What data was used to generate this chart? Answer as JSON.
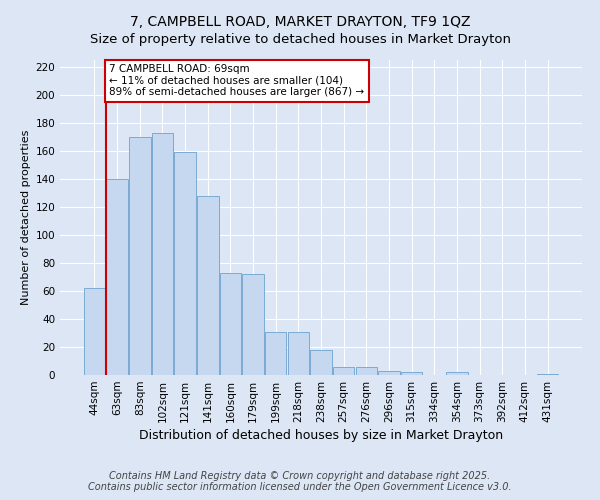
{
  "title": "7, CAMPBELL ROAD, MARKET DRAYTON, TF9 1QZ",
  "subtitle": "Size of property relative to detached houses in Market Drayton",
  "xlabel": "Distribution of detached houses by size in Market Drayton",
  "ylabel": "Number of detached properties",
  "categories": [
    "44sqm",
    "63sqm",
    "83sqm",
    "102sqm",
    "121sqm",
    "141sqm",
    "160sqm",
    "179sqm",
    "199sqm",
    "218sqm",
    "238sqm",
    "257sqm",
    "276sqm",
    "296sqm",
    "315sqm",
    "334sqm",
    "354sqm",
    "373sqm",
    "392sqm",
    "412sqm",
    "431sqm"
  ],
  "values": [
    62,
    140,
    170,
    173,
    159,
    128,
    73,
    72,
    31,
    31,
    18,
    6,
    6,
    3,
    2,
    0,
    2,
    0,
    0,
    0,
    1
  ],
  "bar_color": "#c5d8f0",
  "bar_edge_color": "#7aaad4",
  "vline_x": 0.5,
  "vline_color": "#cc0000",
  "annotation_text": "7 CAMPBELL ROAD: 69sqm\n← 11% of detached houses are smaller (104)\n89% of semi-detached houses are larger (867) →",
  "annotation_box_color": "#ffffff",
  "annotation_box_edge_color": "#cc0000",
  "background_color": "#dce6f5",
  "plot_bg_color": "#dce6f5",
  "ylim": [
    0,
    225
  ],
  "yticks": [
    0,
    20,
    40,
    60,
    80,
    100,
    120,
    140,
    160,
    180,
    200,
    220
  ],
  "footer": "Contains HM Land Registry data © Crown copyright and database right 2025.\nContains public sector information licensed under the Open Government Licence v3.0.",
  "title_fontsize": 10,
  "xlabel_fontsize": 9,
  "ylabel_fontsize": 8,
  "tick_fontsize": 7.5,
  "footer_fontsize": 7,
  "annot_fontsize": 7.5
}
